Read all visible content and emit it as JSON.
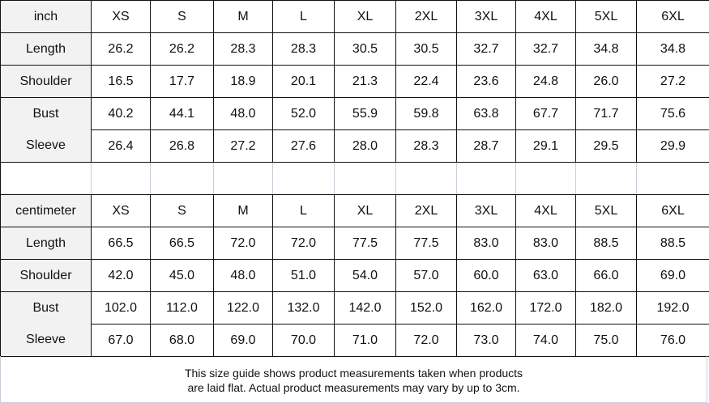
{
  "sizes": [
    "XS",
    "S",
    "M",
    "L",
    "XL",
    "2XL",
    "3XL",
    "4XL",
    "5XL",
    "6XL"
  ],
  "tables": [
    {
      "unit": "inch",
      "rows": [
        {
          "label": "Length",
          "values": [
            "26.2",
            "26.2",
            "28.3",
            "28.3",
            "30.5",
            "30.5",
            "32.7",
            "32.7",
            "34.8",
            "34.8"
          ]
        },
        {
          "label": "Shoulder",
          "values": [
            "16.5",
            "17.7",
            "18.9",
            "20.1",
            "21.3",
            "22.4",
            "23.6",
            "24.8",
            "26.0",
            "27.2"
          ]
        },
        {
          "label": "Bust",
          "values": [
            "40.2",
            "44.1",
            "48.0",
            "52.0",
            "55.9",
            "59.8",
            "63.8",
            "67.7",
            "71.7",
            "75.6"
          ]
        },
        {
          "label": "Sleeve",
          "values": [
            "26.4",
            "26.8",
            "27.2",
            "27.6",
            "28.0",
            "28.3",
            "28.7",
            "29.1",
            "29.5",
            "29.9"
          ]
        }
      ]
    },
    {
      "unit": "centimeter",
      "rows": [
        {
          "label": "Length",
          "values": [
            "66.5",
            "66.5",
            "72.0",
            "72.0",
            "77.5",
            "77.5",
            "83.0",
            "83.0",
            "88.5",
            "88.5"
          ]
        },
        {
          "label": "Shoulder",
          "values": [
            "42.0",
            "45.0",
            "48.0",
            "51.0",
            "54.0",
            "57.0",
            "60.0",
            "63.0",
            "66.0",
            "69.0"
          ]
        },
        {
          "label": "Bust",
          "values": [
            "102.0",
            "112.0",
            "122.0",
            "132.0",
            "142.0",
            "152.0",
            "162.0",
            "172.0",
            "182.0",
            "192.0"
          ]
        },
        {
          "label": "Sleeve",
          "values": [
            "67.0",
            "68.0",
            "69.0",
            "70.0",
            "71.0",
            "72.0",
            "73.0",
            "74.0",
            "75.0",
            "76.0"
          ]
        }
      ]
    }
  ],
  "footer": {
    "line1": "This size guide shows product measurements taken when products",
    "line2": "are laid flat. Actual product measurements may vary by up to 3cm."
  }
}
